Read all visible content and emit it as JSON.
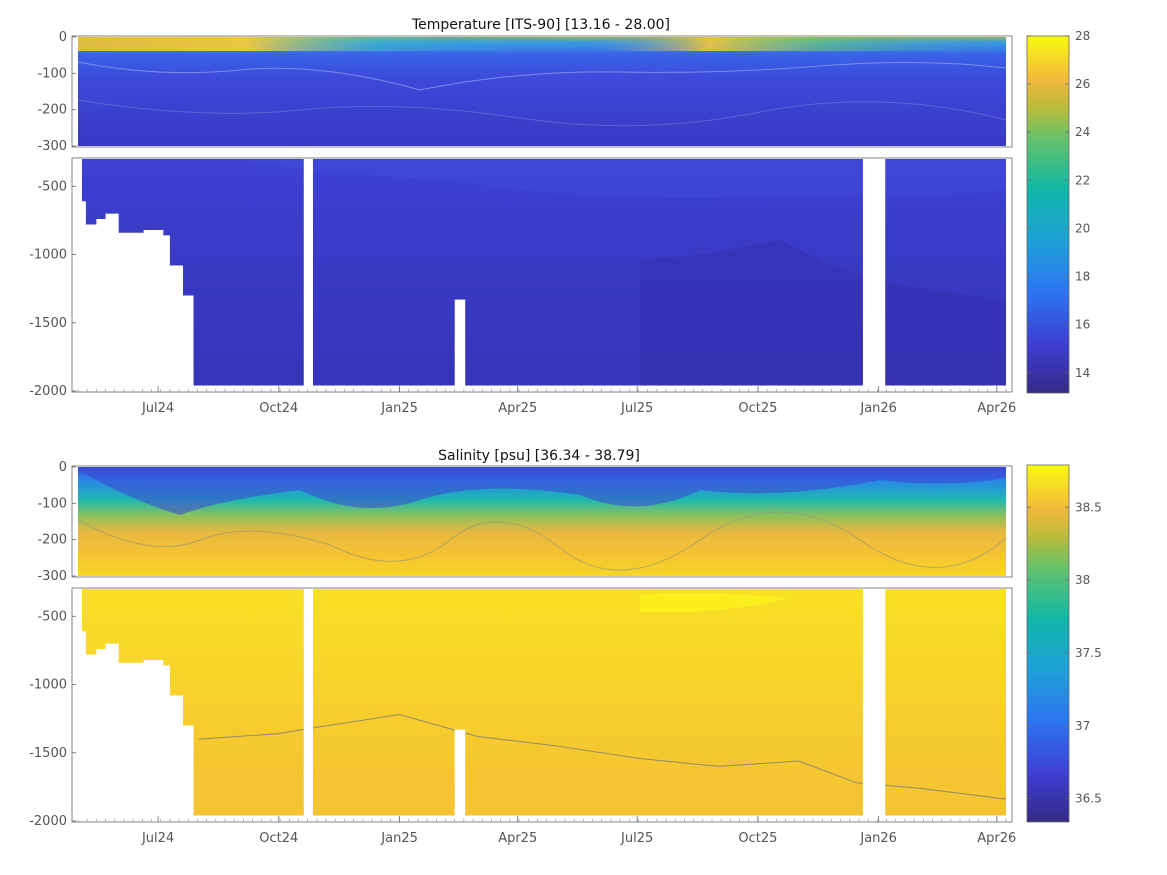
{
  "chart_data": [
    {
      "type": "heatmap",
      "title": "Temperature [ITS-90]   [13.16 - 28.00]",
      "variable": "Temperature",
      "unit": "ITS-90",
      "value_range": [
        13.16,
        28.0
      ],
      "x_ticks": [
        "Jul24",
        "Oct24",
        "Jan25",
        "Apr25",
        "Jul25",
        "Oct25",
        "Jan26",
        "Apr26"
      ],
      "x_tick_dates": [
        "2024-07-01",
        "2024-10-01",
        "2025-01-01",
        "2025-04-01",
        "2025-07-01",
        "2025-10-01",
        "2026-01-01",
        "2026-04-01"
      ],
      "x_range": [
        "2024-05-01",
        "2026-04-08"
      ],
      "upper_panel": {
        "ylim": [
          -300,
          0
        ],
        "y_ticks": [
          "0",
          "-100",
          "-200",
          "-300"
        ],
        "y_tick_values": [
          0,
          -100,
          -200,
          -300
        ]
      },
      "lower_panel": {
        "ylim": [
          -2000,
          -300
        ],
        "y_ticks": [
          "-500",
          "-1000",
          "-1500",
          "-2000"
        ],
        "y_tick_values": [
          -500,
          -1000,
          -1500,
          -2000
        ]
      },
      "colorbar": {
        "ticks": [
          "28",
          "26",
          "24",
          "22",
          "20",
          "18",
          "16",
          "14"
        ],
        "tick_values": [
          28,
          26,
          24,
          22,
          20,
          18,
          16,
          14
        ]
      },
      "colormap": "parula",
      "data_gaps": [
        {
          "start": "2024-10-20",
          "end": "2024-10-27",
          "bottom": -2000,
          "top": -300
        },
        {
          "start": "2025-02-12",
          "end": "2025-02-20",
          "bottom": -2000,
          "top": -1330
        },
        {
          "start": "2025-12-20",
          "end": "2026-01-06",
          "bottom": -2000,
          "top": -300
        }
      ],
      "bottom_profile": [
        {
          "date": "2024-05-01",
          "depth": -300
        },
        {
          "date": "2024-05-04",
          "depth": -610
        },
        {
          "date": "2024-05-07",
          "depth": -780
        },
        {
          "date": "2024-05-15",
          "depth": -740
        },
        {
          "date": "2024-05-22",
          "depth": -700
        },
        {
          "date": "2024-06-01",
          "depth": -840
        },
        {
          "date": "2024-06-20",
          "depth": -820
        },
        {
          "date": "2024-07-05",
          "depth": -860
        },
        {
          "date": "2024-07-10",
          "depth": -1080
        },
        {
          "date": "2024-07-20",
          "depth": -1300
        },
        {
          "date": "2024-07-28",
          "depth": -1960
        },
        {
          "date": "2026-04-08",
          "depth": -1960
        }
      ]
    },
    {
      "type": "heatmap",
      "title": "Salinity [psu]   [36.34 - 38.79]",
      "variable": "Salinity",
      "unit": "psu",
      "value_range": [
        36.34,
        38.79
      ],
      "x_ticks": [
        "Jul24",
        "Oct24",
        "Jan25",
        "Apr25",
        "Jul25",
        "Oct25",
        "Jan26",
        "Apr26"
      ],
      "x_tick_dates": [
        "2024-07-01",
        "2024-10-01",
        "2025-01-01",
        "2025-04-01",
        "2025-07-01",
        "2025-10-01",
        "2026-01-01",
        "2026-04-01"
      ],
      "x_range": [
        "2024-05-01",
        "2026-04-08"
      ],
      "upper_panel": {
        "ylim": [
          -300,
          0
        ],
        "y_ticks": [
          "0",
          "-100",
          "-200",
          "-300"
        ],
        "y_tick_values": [
          0,
          -100,
          -200,
          -300
        ]
      },
      "lower_panel": {
        "ylim": [
          -2000,
          -300
        ],
        "y_ticks": [
          "-500",
          "-1000",
          "-1500",
          "-2000"
        ],
        "y_tick_values": [
          -500,
          -1000,
          -1500,
          -2000
        ]
      },
      "colorbar": {
        "ticks": [
          "38.5",
          "38",
          "37.5",
          "37",
          "36.5"
        ],
        "tick_values": [
          38.5,
          38,
          37.5,
          37,
          36.5
        ]
      },
      "colormap": "parula",
      "data_gaps": [
        {
          "start": "2024-10-20",
          "end": "2024-10-27",
          "bottom": -2000,
          "top": -300
        },
        {
          "start": "2025-02-12",
          "end": "2025-02-20",
          "bottom": -2000,
          "top": -1330
        },
        {
          "start": "2025-12-20",
          "end": "2026-01-06",
          "bottom": -2000,
          "top": -300
        }
      ],
      "contour_38_7_depth": [
        {
          "date": "2024-08-01",
          "depth": -1400
        },
        {
          "date": "2024-10-01",
          "depth": -1360
        },
        {
          "date": "2024-11-01",
          "depth": -1310
        },
        {
          "date": "2025-01-01",
          "depth": -1220
        },
        {
          "date": "2025-03-01",
          "depth": -1380
        },
        {
          "date": "2025-05-01",
          "depth": -1450
        },
        {
          "date": "2025-07-01",
          "depth": -1540
        },
        {
          "date": "2025-09-01",
          "depth": -1600
        },
        {
          "date": "2025-11-01",
          "depth": -1560
        },
        {
          "date": "2025-12-15",
          "depth": -1720
        },
        {
          "date": "2026-02-01",
          "depth": -1760
        },
        {
          "date": "2026-04-08",
          "depth": -1840
        }
      ]
    }
  ]
}
